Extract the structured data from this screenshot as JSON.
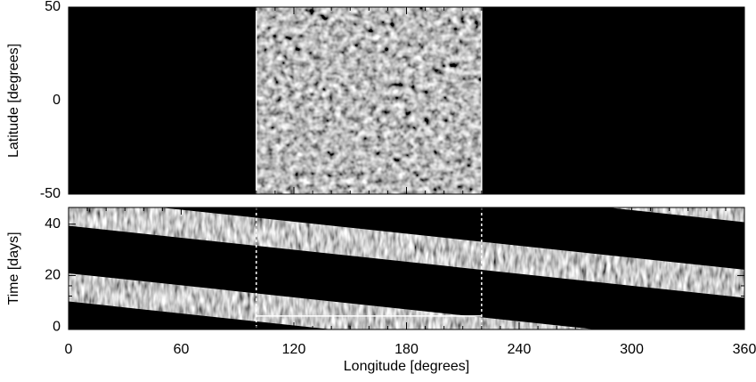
{
  "chart_data": [
    {
      "type": "image",
      "ylabel": "Latitude [degrees]",
      "xlim": [
        0,
        360
      ],
      "xticks": [
        0,
        60,
        120,
        180,
        240,
        300,
        360
      ],
      "xtick_labels": false,
      "ylim": [
        -50,
        50
      ],
      "yticks": [
        -50,
        0,
        50
      ],
      "region_xlim": [
        100,
        220
      ]
    },
    {
      "type": "image",
      "xlabel": "Longitude [degrees]",
      "ylabel": "Time [days]",
      "xlim": [
        0,
        360
      ],
      "xticks": [
        0,
        60,
        120,
        180,
        240,
        300,
        360
      ],
      "xtick_labels": true,
      "ylim": [
        -1,
        46.5
      ],
      "yticks": [
        0,
        20,
        40
      ],
      "region_xlim": [
        100,
        220
      ]
    }
  ]
}
